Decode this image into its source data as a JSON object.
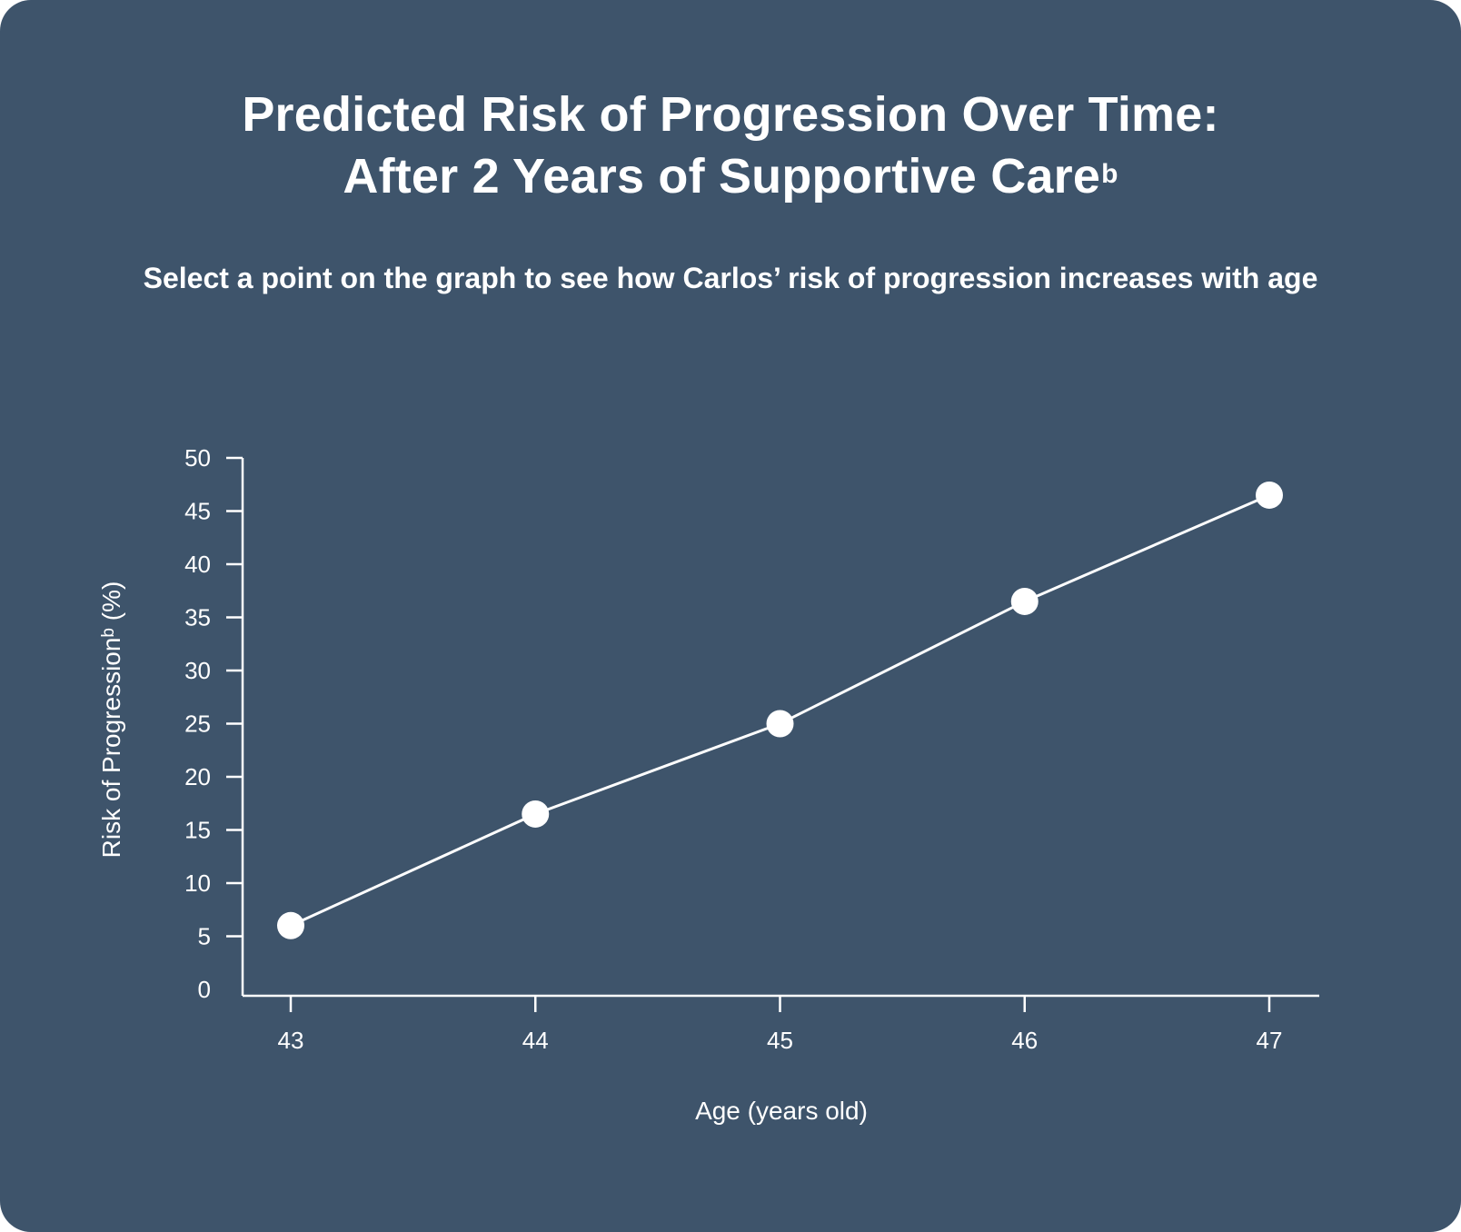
{
  "header": {
    "title_line1": "Predicted Risk of Progression Over Time:",
    "title_line2": "After 2 Years of Supportive Care",
    "title_superscript": "b",
    "subtitle": "Select a point on the graph to see how Carlos’ risk of progression increases with age"
  },
  "colors": {
    "background": "#3e546b",
    "foreground": "#ffffff"
  },
  "chart_data": {
    "type": "line",
    "title": "Predicted Risk of Progression Over Time: After 2 Years of Supportive Care",
    "xlabel": "Age (years old)",
    "ylabel": "Risk of Progressionᵇ (%)",
    "x": [
      43,
      44,
      45,
      46,
      47
    ],
    "y": [
      6,
      16.5,
      25,
      36.5,
      46.5
    ],
    "xticks": [
      "43",
      "44",
      "45",
      "46",
      "47"
    ],
    "yticks": [
      "0",
      "5",
      "10",
      "15",
      "20",
      "25",
      "30",
      "35",
      "40",
      "45",
      "50"
    ],
    "ylim": [
      0,
      50
    ],
    "xlim": [
      43,
      47
    ],
    "grid": false,
    "legend": "none"
  }
}
